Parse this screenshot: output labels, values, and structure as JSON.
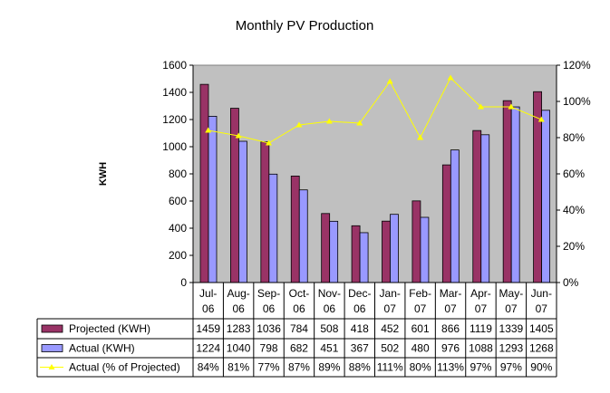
{
  "chart_data": {
    "type": "bar",
    "title": "Monthly PV Production",
    "ylabel": "KWH",
    "ylim": [
      0,
      1600
    ],
    "yticks": [
      0,
      200,
      400,
      600,
      800,
      1000,
      1200,
      1400,
      1600
    ],
    "y2lim": [
      0,
      120
    ],
    "y2ticks": [
      "0%",
      "20%",
      "40%",
      "60%",
      "80%",
      "100%",
      "120%"
    ],
    "categories": [
      [
        "Jul-",
        "06"
      ],
      [
        "Aug-",
        "06"
      ],
      [
        "Sep-",
        "06"
      ],
      [
        "Oct-",
        "06"
      ],
      [
        "Nov-",
        "06"
      ],
      [
        "Dec-",
        "06"
      ],
      [
        "Jan-",
        "07"
      ],
      [
        "Feb-",
        "07"
      ],
      [
        "Mar-",
        "07"
      ],
      [
        "Apr-",
        "07"
      ],
      [
        "May-",
        "07"
      ],
      [
        "Jun-",
        "07"
      ]
    ],
    "series": [
      {
        "name": "Projected (KWH)",
        "kind": "bar",
        "axis": "left",
        "color": "#993366",
        "values": [
          1459,
          1283,
          1036,
          784,
          508,
          418,
          452,
          601,
          866,
          1119,
          1339,
          1405
        ],
        "labels": [
          "1459",
          "1283",
          "1036",
          "784",
          "508",
          "418",
          "452",
          "601",
          "866",
          "1119",
          "1339",
          "1405"
        ]
      },
      {
        "name": "Actual (KWH)",
        "kind": "bar",
        "axis": "left",
        "color": "#9999ff",
        "values": [
          1224,
          1040,
          798,
          682,
          451,
          367,
          502,
          480,
          976,
          1088,
          1293,
          1268
        ],
        "labels": [
          "1224",
          "1040",
          "798",
          "682",
          "451",
          "367",
          "502",
          "480",
          "976",
          "1088",
          "1293",
          "1268"
        ]
      },
      {
        "name": "Actual (% of Projected)",
        "kind": "line",
        "axis": "right",
        "color": "#ffff00",
        "values": [
          84,
          81,
          77,
          87,
          89,
          88,
          111,
          80,
          113,
          97,
          97,
          90
        ],
        "labels": [
          "84%",
          "81%",
          "77%",
          "87%",
          "89%",
          "88%",
          "111%",
          "80%",
          "113%",
          "97%",
          "97%",
          "90%"
        ]
      }
    ],
    "plot_background": "#c0c0c0",
    "grid": false,
    "legend": "data-table"
  }
}
